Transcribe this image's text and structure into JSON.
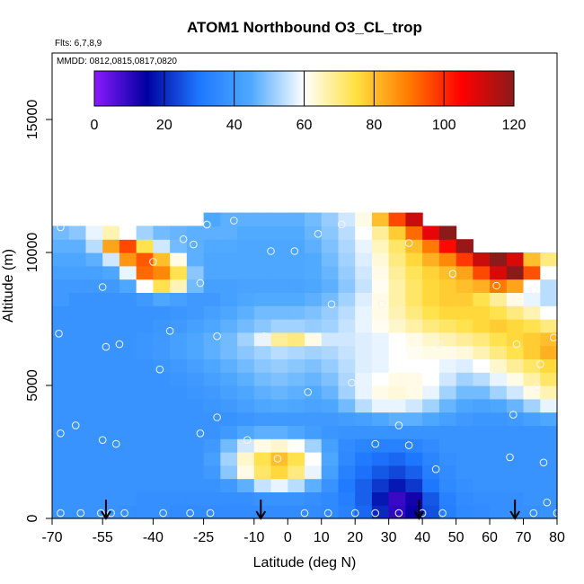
{
  "chart_data": {
    "type": "heatmap",
    "title": "ATOM1 Northbound O3_CL_trop",
    "flights_note": "Flts: 6,7,8,9",
    "dates_note": "MMDD: 0812,0815,0817,0820",
    "xlabel": "Latitude (deg N)",
    "ylabel": "Altitude (m)",
    "xlim": [
      -70,
      80
    ],
    "ylim": [
      0,
      17500
    ],
    "x_tick_values": [
      -70,
      -55,
      -40,
      -25,
      -10,
      0,
      10,
      20,
      30,
      40,
      50,
      60,
      70,
      80
    ],
    "x_tick_labels": [
      "-70",
      "-55",
      "-40",
      "-25",
      "-10",
      "0",
      "10",
      "20",
      "30",
      "40",
      "50",
      "60",
      "70",
      "80"
    ],
    "y_tick_values": [
      0,
      5000,
      10000,
      15000
    ],
    "y_tick_labels": [
      "0",
      "5000",
      "10000",
      "15000"
    ],
    "colorbar": {
      "min": 0,
      "max": 120,
      "tick_values": [
        0,
        20,
        40,
        60,
        80,
        100,
        120
      ],
      "tick_labels": [
        "0",
        "20",
        "40",
        "60",
        "80",
        "100",
        "120"
      ],
      "colors": [
        "#8b1aff",
        "#0000a0",
        "#1e78ff",
        "#50aaff",
        "#ffffff",
        "#ffe040",
        "#ff7a00",
        "#ff0000",
        "#8b1a1a"
      ]
    },
    "lat_centers": [
      -67.5,
      -62.5,
      -57.5,
      -52.5,
      -47.5,
      -42.5,
      -37.5,
      -32.5,
      -27.5,
      -22.5,
      -17.5,
      -12.5,
      -7.5,
      -2.5,
      2.5,
      7.5,
      12.5,
      17.5,
      22.5,
      27.5,
      32.5,
      37.5,
      42.5,
      47.5,
      52.5,
      57.5,
      62.5,
      67.5,
      72.5,
      77.5
    ],
    "alt_centers": [
      250,
      750,
      1250,
      1750,
      2250,
      2750,
      3250,
      3750,
      4250,
      4750,
      5250,
      5750,
      6250,
      6750,
      7250,
      7750,
      8250,
      8750,
      9250,
      9750,
      10250,
      10750,
      11250
    ],
    "o3_ppbv_rows_by_altitude": [
      [
        38,
        38,
        38,
        38,
        37,
        37,
        37,
        36,
        36,
        36,
        36,
        36,
        36,
        36,
        36,
        36,
        35,
        33,
        28,
        20,
        10,
        14,
        25,
        32,
        35,
        36,
        37,
        37,
        37,
        38
      ],
      [
        38,
        38,
        38,
        38,
        38,
        37,
        37,
        37,
        37,
        37,
        37,
        37,
        38,
        38,
        38,
        37,
        35,
        32,
        27,
        18,
        9,
        13,
        26,
        33,
        36,
        37,
        37,
        37,
        38,
        38
      ],
      [
        38,
        38,
        38,
        38,
        38,
        38,
        38,
        38,
        38,
        38,
        40,
        46,
        55,
        58,
        54,
        46,
        38,
        31,
        27,
        22,
        18,
        22,
        30,
        35,
        37,
        38,
        38,
        38,
        38,
        38
      ],
      [
        38,
        38,
        38,
        38,
        38,
        38,
        38,
        38,
        38,
        40,
        50,
        62,
        72,
        76,
        70,
        58,
        42,
        33,
        29,
        26,
        24,
        27,
        32,
        36,
        38,
        38,
        38,
        38,
        38,
        38
      ],
      [
        38,
        38,
        38,
        38,
        38,
        38,
        38,
        38,
        38,
        42,
        52,
        64,
        74,
        80,
        74,
        60,
        44,
        35,
        31,
        29,
        28,
        30,
        34,
        37,
        38,
        38,
        38,
        38,
        38,
        38
      ],
      [
        38,
        38,
        38,
        38,
        38,
        38,
        38,
        38,
        38,
        40,
        48,
        56,
        62,
        64,
        60,
        52,
        42,
        36,
        34,
        33,
        33,
        34,
        36,
        38,
        38,
        38,
        38,
        38,
        38,
        38
      ],
      [
        38,
        38,
        38,
        38,
        38,
        38,
        38,
        38,
        38,
        38,
        40,
        44,
        46,
        46,
        44,
        41,
        39,
        38,
        38,
        38,
        38,
        38,
        38,
        38,
        38,
        38,
        38,
        38,
        38,
        38
      ],
      [
        38,
        38,
        38,
        38,
        38,
        38,
        38,
        38,
        38,
        38,
        38,
        39,
        40,
        40,
        40,
        40,
        40,
        41,
        42,
        44,
        46,
        46,
        44,
        42,
        40,
        39,
        39,
        40,
        42,
        44
      ],
      [
        38,
        38,
        38,
        38,
        38,
        38,
        38,
        38,
        38,
        39,
        40,
        42,
        44,
        45,
        44,
        43,
        44,
        48,
        54,
        58,
        58,
        56,
        52,
        47,
        44,
        43,
        44,
        47,
        52,
        58
      ],
      [
        38,
        38,
        38,
        38,
        38,
        38,
        38,
        38,
        39,
        40,
        42,
        44,
        46,
        47,
        46,
        45,
        47,
        52,
        58,
        62,
        63,
        62,
        58,
        52,
        48,
        48,
        52,
        56,
        62,
        66
      ],
      [
        38,
        38,
        38,
        38,
        38,
        38,
        38,
        39,
        40,
        42,
        44,
        46,
        48,
        49,
        48,
        47,
        49,
        53,
        58,
        60,
        62,
        62,
        60,
        56,
        52,
        54,
        58,
        62,
        67,
        72
      ],
      [
        38,
        38,
        38,
        38,
        38,
        38,
        39,
        40,
        42,
        44,
        46,
        48,
        50,
        51,
        50,
        49,
        51,
        54,
        57,
        58,
        60,
        60,
        60,
        58,
        57,
        60,
        64,
        68,
        72,
        76
      ],
      [
        38,
        38,
        38,
        38,
        38,
        39,
        40,
        42,
        44,
        46,
        48,
        50,
        52,
        54,
        53,
        52,
        53,
        55,
        57,
        58,
        60,
        61,
        62,
        62,
        63,
        66,
        70,
        74,
        78,
        82
      ],
      [
        38,
        38,
        38,
        38,
        38,
        39,
        40,
        42,
        44,
        46,
        48,
        52,
        58,
        68,
        70,
        62,
        56,
        56,
        57,
        58,
        60,
        62,
        64,
        66,
        68,
        70,
        74,
        76,
        78,
        80
      ],
      [
        38,
        38,
        38,
        38,
        38,
        38,
        39,
        40,
        42,
        44,
        46,
        48,
        50,
        52,
        52,
        51,
        52,
        55,
        58,
        61,
        64,
        67,
        70,
        72,
        74,
        76,
        78,
        76,
        74,
        70
      ],
      [
        38,
        38,
        38,
        38,
        38,
        38,
        38,
        39,
        40,
        42,
        44,
        46,
        48,
        48,
        48,
        49,
        51,
        54,
        58,
        62,
        66,
        70,
        74,
        76,
        76,
        76,
        74,
        70,
        66,
        60
      ],
      [
        40,
        38,
        38,
        38,
        38,
        40,
        44,
        42,
        40,
        40,
        42,
        44,
        45,
        45,
        45,
        46,
        48,
        52,
        57,
        62,
        67,
        72,
        76,
        78,
        78,
        74,
        68,
        62,
        58,
        54
      ],
      [
        40,
        40,
        40,
        40,
        44,
        60,
        74,
        66,
        48,
        42,
        42,
        43,
        43,
        43,
        43,
        44,
        46,
        50,
        55,
        61,
        67,
        72,
        76,
        78,
        80,
        82,
        90,
        84,
        60,
        54
      ],
      [
        42,
        42,
        42,
        44,
        58,
        92,
        88,
        74,
        50,
        44,
        44,
        44,
        44,
        44,
        44,
        45,
        47,
        51,
        56,
        62,
        68,
        73,
        77,
        80,
        84,
        96,
        110,
        120,
        95,
        60
      ],
      [
        44,
        44,
        46,
        56,
        86,
        94,
        80,
        62,
        46,
        44,
        44,
        44,
        44,
        44,
        44,
        45,
        48,
        52,
        57,
        63,
        70,
        76,
        82,
        88,
        98,
        112,
        124,
        110,
        80,
        70
      ],
      [
        46,
        46,
        54,
        84,
        96,
        74,
        56,
        48,
        46,
        45,
        45,
        44,
        44,
        44,
        44,
        46,
        49,
        53,
        58,
        65,
        72,
        80,
        90,
        104,
        118,
        null,
        null,
        null,
        null,
        null
      ],
      [
        48,
        50,
        58,
        66,
        60,
        52,
        48,
        47,
        46,
        46,
        46,
        45,
        45,
        45,
        45,
        47,
        50,
        54,
        60,
        68,
        78,
        92,
        108,
        120,
        null,
        null,
        null,
        null,
        null,
        null
      ],
      [
        null,
        null,
        null,
        null,
        null,
        null,
        null,
        null,
        null,
        44,
        46,
        46,
        46,
        46,
        46,
        48,
        51,
        56,
        62,
        80,
        96,
        112,
        null,
        null,
        null,
        null,
        null,
        null,
        null,
        null
      ]
    ],
    "observation_points": [
      {
        "lat": -67.5,
        "alt": 200
      },
      {
        "lat": -61.5,
        "alt": 200
      },
      {
        "lat": -55.5,
        "alt": 200
      },
      {
        "lat": -52.5,
        "alt": 200
      },
      {
        "lat": -48.5,
        "alt": 200
      },
      {
        "lat": -37,
        "alt": 200
      },
      {
        "lat": -29,
        "alt": 200
      },
      {
        "lat": -23,
        "alt": 200
      },
      {
        "lat": 5,
        "alt": 200
      },
      {
        "lat": 12,
        "alt": 200
      },
      {
        "lat": 20,
        "alt": 200
      },
      {
        "lat": 26,
        "alt": 200
      },
      {
        "lat": 33,
        "alt": 200
      },
      {
        "lat": 40,
        "alt": 200
      },
      {
        "lat": 46,
        "alt": 200
      },
      {
        "lat": 73,
        "alt": 200
      },
      {
        "lat": 80,
        "alt": 200
      },
      {
        "lat": 77,
        "alt": 600
      },
      {
        "lat": -67.5,
        "alt": 3200
      },
      {
        "lat": -63,
        "alt": 3500
      },
      {
        "lat": -55,
        "alt": 2950
      },
      {
        "lat": -51,
        "alt": 2800
      },
      {
        "lat": -26,
        "alt": 3200
      },
      {
        "lat": -21,
        "alt": 3800
      },
      {
        "lat": -12,
        "alt": 2950
      },
      {
        "lat": -3,
        "alt": 2250
      },
      {
        "lat": 26,
        "alt": 2800
      },
      {
        "lat": 33,
        "alt": 3500
      },
      {
        "lat": 36,
        "alt": 2750
      },
      {
        "lat": 44,
        "alt": 1850
      },
      {
        "lat": 66,
        "alt": 2300
      },
      {
        "lat": 76,
        "alt": 2100
      },
      {
        "lat": 67,
        "alt": 3900
      },
      {
        "lat": 6,
        "alt": 4750
      },
      {
        "lat": 19,
        "alt": 5100
      },
      {
        "lat": -38,
        "alt": 5600
      },
      {
        "lat": 74,
        "alt": 4950
      },
      {
        "lat": 75,
        "alt": 5800
      },
      {
        "lat": -68,
        "alt": 6950
      },
      {
        "lat": -54,
        "alt": 6450
      },
      {
        "lat": -50,
        "alt": 6550
      },
      {
        "lat": -35,
        "alt": 7050
      },
      {
        "lat": -21,
        "alt": 6850
      },
      {
        "lat": -7,
        "alt": 6850
      },
      {
        "lat": 68,
        "alt": 6550
      },
      {
        "lat": 45,
        "alt": 6550
      },
      {
        "lat": 79,
        "alt": 6800
      },
      {
        "lat": 13,
        "alt": 8050
      },
      {
        "lat": 28,
        "alt": 8050
      },
      {
        "lat": -55,
        "alt": 8700
      },
      {
        "lat": -26,
        "alt": 8850
      },
      {
        "lat": 73,
        "alt": 8600
      },
      {
        "lat": 62,
        "alt": 8750
      },
      {
        "lat": -40,
        "alt": 9650
      },
      {
        "lat": -31,
        "alt": 10500
      },
      {
        "lat": -28,
        "alt": 10300
      },
      {
        "lat": -5,
        "alt": 10050
      },
      {
        "lat": 2,
        "alt": 10050
      },
      {
        "lat": 9,
        "alt": 10700
      },
      {
        "lat": 16,
        "alt": 11050
      },
      {
        "lat": -24,
        "alt": 11050
      },
      {
        "lat": -16,
        "alt": 11200
      },
      {
        "lat": 36,
        "alt": 10350
      },
      {
        "lat": 49,
        "alt": 9200
      },
      {
        "lat": -67.5,
        "alt": 10950
      }
    ],
    "flight_markers_lat": [
      -54,
      -8,
      39,
      67.5
    ]
  }
}
